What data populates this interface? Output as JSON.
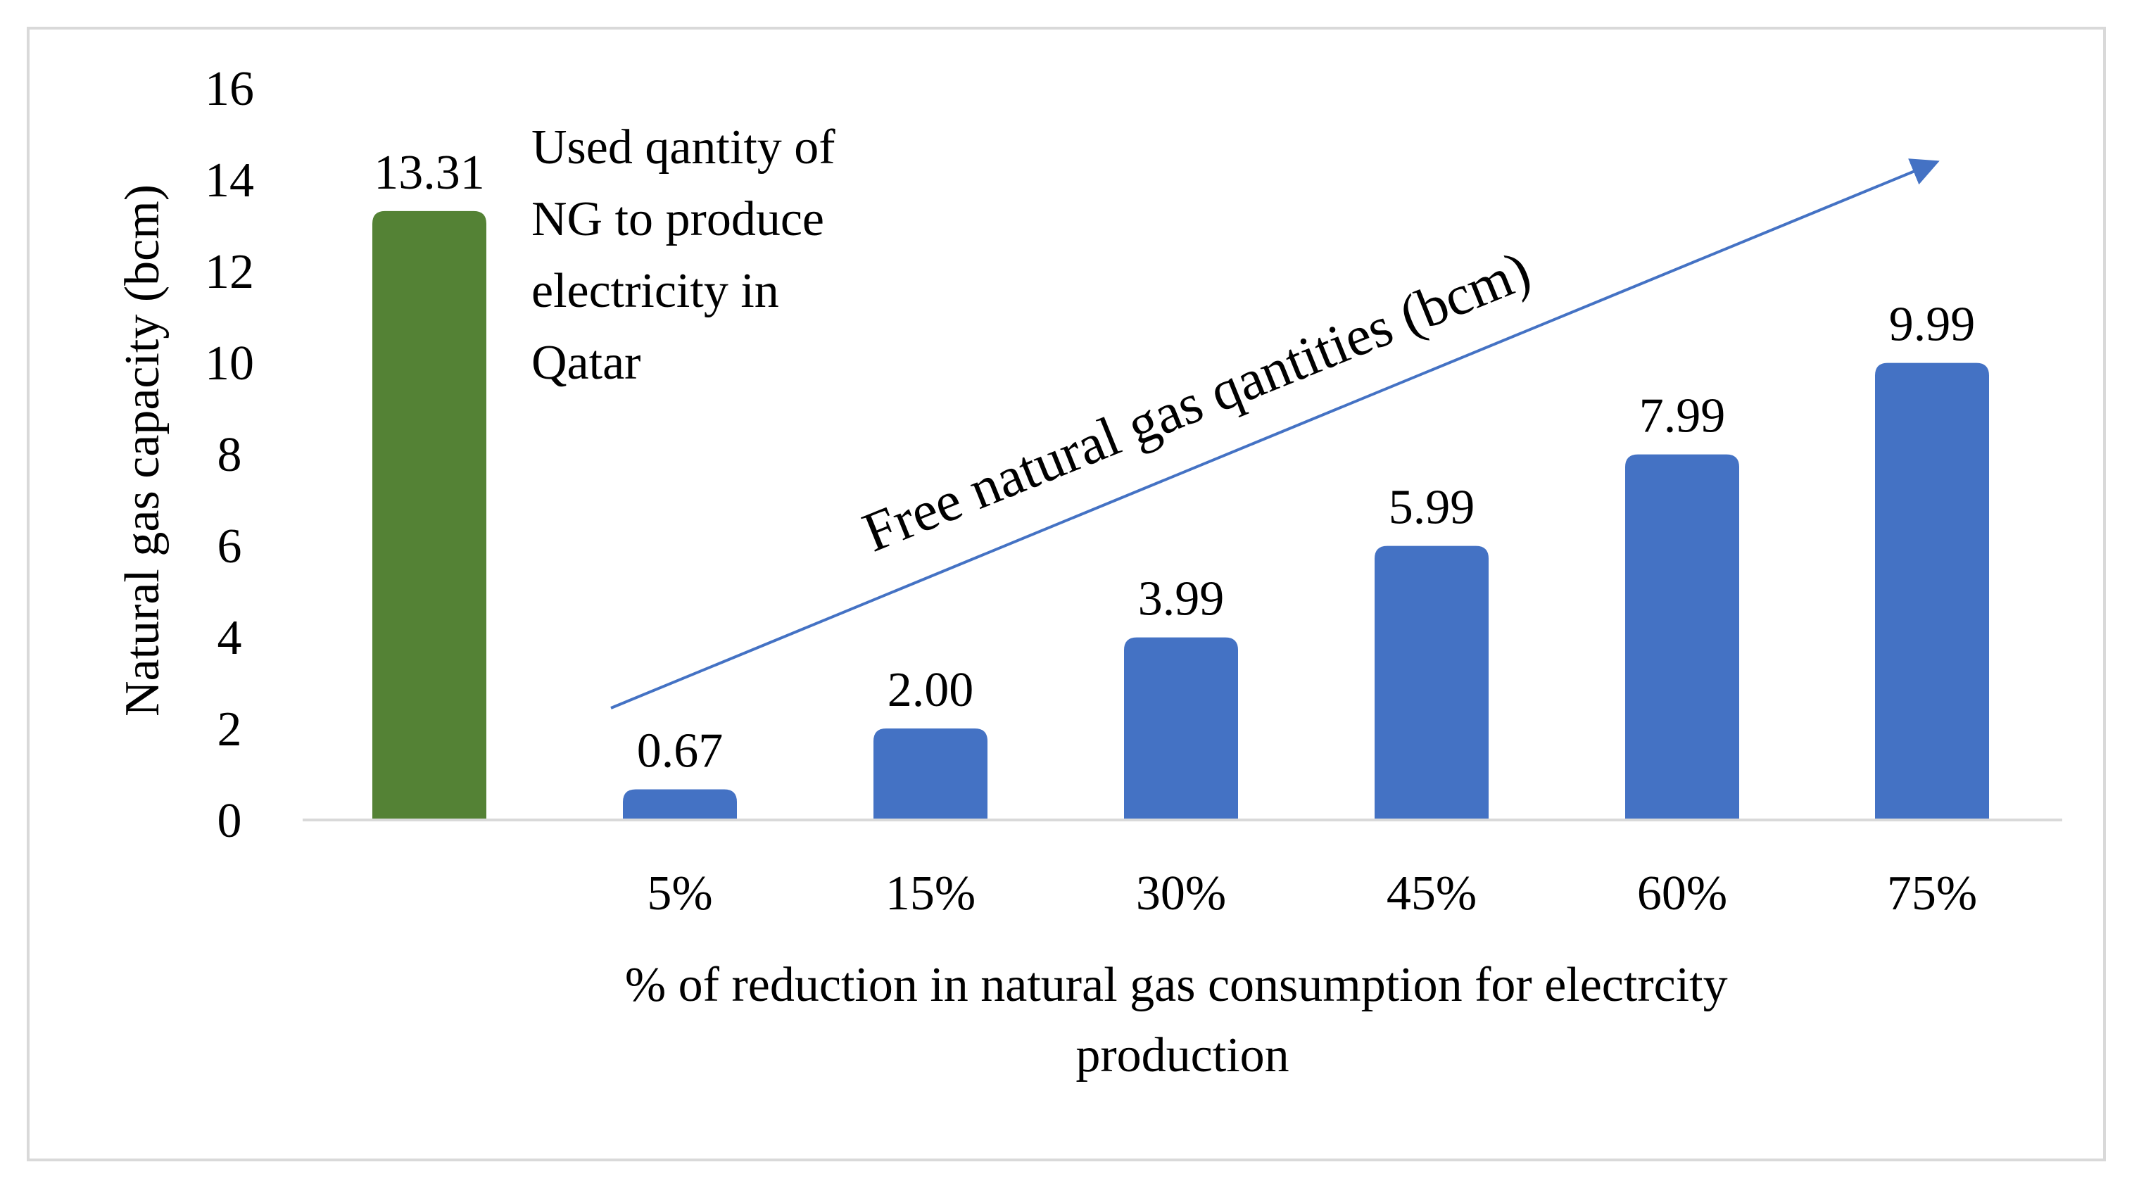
{
  "chart_data": {
    "type": "bar",
    "title": "",
    "ylabel": "Natural gas capacity (bcm)",
    "xlabel": "% of reduction in natural gas consumption for electrcity production",
    "ylim": [
      0,
      16
    ],
    "yticks": [
      0,
      2,
      4,
      6,
      8,
      10,
      12,
      14,
      16
    ],
    "grid": false,
    "categories": [
      "",
      "5%",
      "15%",
      "30%",
      "45%",
      "60%",
      "75%"
    ],
    "values": [
      13.31,
      0.67,
      2.0,
      3.99,
      5.99,
      7.99,
      9.99
    ],
    "value_labels": [
      "13.31",
      "0.67",
      "2.00",
      "3.99",
      "5.99",
      "7.99",
      "9.99"
    ],
    "bar_colors": [
      "#548235",
      "#4472c4",
      "#4472c4",
      "#4472c4",
      "#4472c4",
      "#4472c4",
      "#4472c4"
    ],
    "annotations": {
      "used_quantity": "Used qantity of NG to produce electricity in Qatar",
      "free_quantities": "Free natural gas qantities (bcm)"
    },
    "arrow": {
      "from_category": "5%",
      "to_category": "75%",
      "color": "#4472c4"
    }
  },
  "colors": {
    "axis": "#d9d9d9",
    "frame": "#d9d9d9",
    "text": "#000000"
  }
}
